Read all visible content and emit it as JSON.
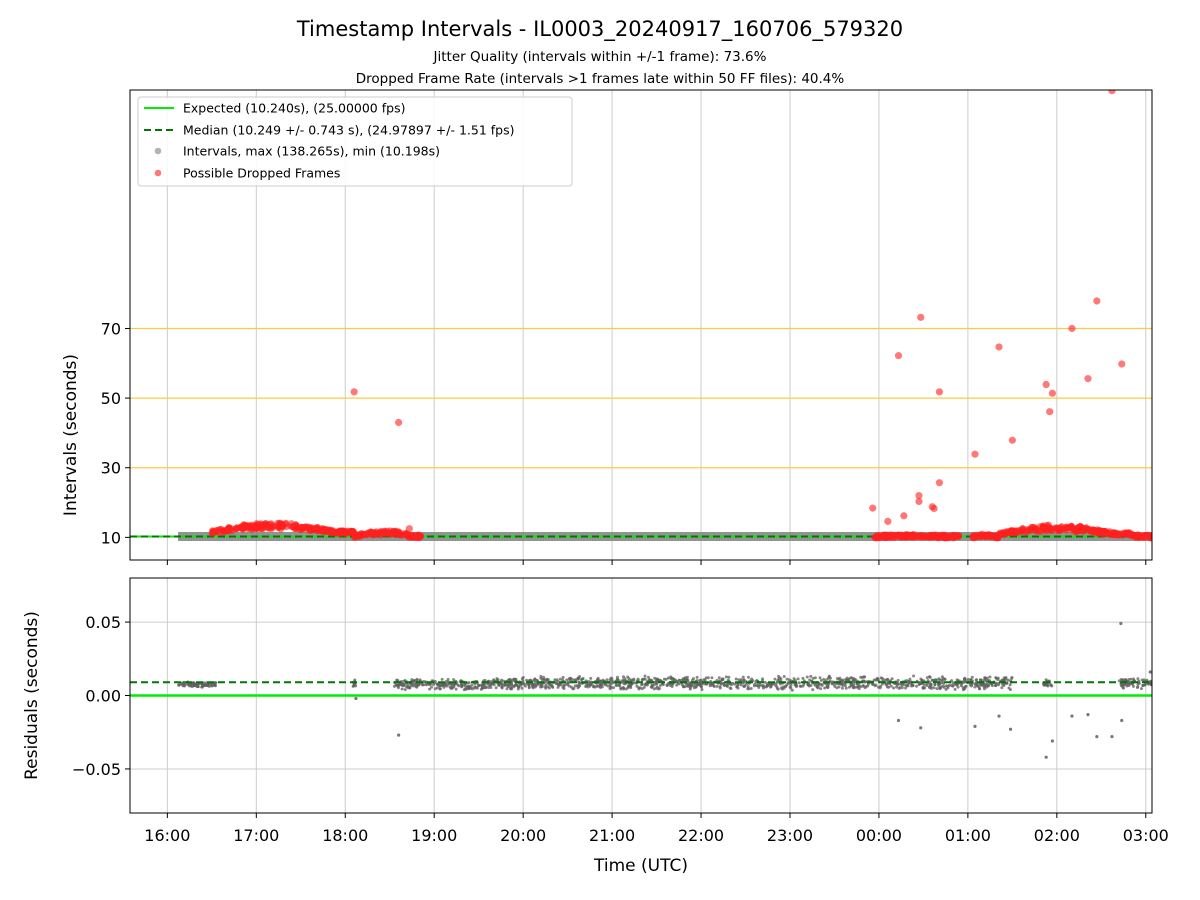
{
  "figure": {
    "title": "Timestamp Intervals - IL0003_20240917_160706_579320",
    "subtitle_1": "Jitter Quality (intervals within +/-1 frame): 73.6%",
    "subtitle_2": "Dropped Frame Rate (intervals >1 frames late within 50 FF files): 40.4%"
  },
  "colors": {
    "expected": "#00ee00",
    "median": "#007700",
    "intervals": "#808080",
    "dropped": "#ff2020",
    "reference": "#ffc845",
    "grid": "#cccccc"
  },
  "chart_data": [
    {
      "type": "scatter",
      "panel": "top",
      "xlabel": "",
      "ylabel": "Intervals (seconds)",
      "ylim": [
        3.5,
        138.5
      ],
      "yticks": [
        10,
        30,
        50,
        70
      ],
      "ytick_labels": [
        "10",
        "30",
        "50",
        "70"
      ],
      "xlim_hours": [
        15.58,
        27.07
      ],
      "xticks_hours": [
        16,
        17,
        18,
        19,
        20,
        21,
        22,
        23,
        24,
        25,
        26,
        27
      ],
      "grid": "x-only",
      "reference_lines": [
        30,
        50,
        70
      ],
      "legend_position": "top-left",
      "legend": [
        "Expected (10.240s), (25.00000 fps)",
        "Median (10.249 +/- 0.743 s), (24.97897 +/- 1.51 fps)",
        "Intervals, max (138.265s), min (10.198s)",
        "Possible Dropped Frames"
      ],
      "expected_value": 10.24,
      "median_value": 10.249,
      "series": [
        {
          "name": "Intervals, max (138.265s), min (10.198s)",
          "kind": "band",
          "segments": [
            {
              "x0": 16.12,
              "x1": 18.85,
              "y": 10.25
            },
            {
              "x0": 18.85,
              "x1": 23.95,
              "y": 10.25
            },
            {
              "x0": 23.95,
              "x1": 27.07,
              "y": 10.25
            }
          ]
        },
        {
          "name": "Possible Dropped Frames",
          "kind": "hump_clusters",
          "clusters": [
            {
              "x0": 16.5,
              "x1": 18.1,
              "peak": 14.0,
              "base": 11.5
            },
            {
              "x0": 18.1,
              "x1": 18.87,
              "peak": 11.8,
              "base": 10.3
            },
            {
              "x0": 23.95,
              "x1": 24.9,
              "peak": 10.5,
              "base": 10.2
            },
            {
              "x0": 25.05,
              "x1": 25.35,
              "peak": 10.6,
              "base": 10.2
            },
            {
              "x0": 25.35,
              "x1": 26.85,
              "peak": 13.3,
              "base": 11.0
            },
            {
              "x0": 26.85,
              "x1": 27.07,
              "peak": 10.5,
              "base": 10.2
            }
          ],
          "outliers": [
            {
              "x": 18.1,
              "y": 51.8
            },
            {
              "x": 18.6,
              "y": 43.0
            },
            {
              "x": 18.72,
              "y": 12.5
            },
            {
              "x": 23.93,
              "y": 18.4
            },
            {
              "x": 24.1,
              "y": 14.6
            },
            {
              "x": 24.22,
              "y": 62.2
            },
            {
              "x": 24.28,
              "y": 16.2
            },
            {
              "x": 24.45,
              "y": 22.0
            },
            {
              "x": 24.45,
              "y": 20.3
            },
            {
              "x": 24.47,
              "y": 73.2
            },
            {
              "x": 24.6,
              "y": 18.8
            },
            {
              "x": 24.62,
              "y": 18.3
            },
            {
              "x": 24.68,
              "y": 25.7
            },
            {
              "x": 24.68,
              "y": 51.8
            },
            {
              "x": 25.08,
              "y": 33.9
            },
            {
              "x": 25.35,
              "y": 64.7
            },
            {
              "x": 25.5,
              "y": 37.9
            },
            {
              "x": 25.88,
              "y": 53.9
            },
            {
              "x": 25.92,
              "y": 46.1
            },
            {
              "x": 25.95,
              "y": 51.4
            },
            {
              "x": 26.17,
              "y": 70.0
            },
            {
              "x": 26.35,
              "y": 55.6
            },
            {
              "x": 26.45,
              "y": 77.9
            },
            {
              "x": 26.62,
              "y": 138.3
            },
            {
              "x": 26.73,
              "y": 59.8
            }
          ]
        },
        {
          "name": "Expected (10.240s), (25.00000 fps)",
          "kind": "hline",
          "y": 10.24
        },
        {
          "name": "Median (10.249 +/- 0.743 s), (24.97897 +/- 1.51 fps)",
          "kind": "hline",
          "y": 10.249
        }
      ]
    },
    {
      "type": "scatter",
      "panel": "bottom",
      "xlabel": "Time (UTC)",
      "ylabel": "Residuals (seconds)",
      "ylim": [
        -0.08,
        0.08
      ],
      "yticks": [
        -0.05,
        0.0,
        0.05
      ],
      "ytick_labels": [
        "−0.05",
        "0.00",
        "0.05"
      ],
      "xlim_hours": [
        15.58,
        27.07
      ],
      "xticks_hours": [
        16,
        17,
        18,
        19,
        20,
        21,
        22,
        23,
        24,
        25,
        26,
        27
      ],
      "xtick_labels": [
        "16:00",
        "17:00",
        "18:00",
        "19:00",
        "20:00",
        "21:00",
        "22:00",
        "23:00",
        "00:00",
        "01:00",
        "02:00",
        "03:00"
      ],
      "grid": "both",
      "expected_value": 0.0,
      "median_value": 0.009,
      "series": [
        {
          "name": "Residuals",
          "kind": "noise_clusters",
          "clusters": [
            {
              "x0": 16.12,
              "x1": 16.55,
              "center": 0.0075,
              "spread": 0.002
            },
            {
              "x0": 18.08,
              "x1": 18.12,
              "center": 0.008,
              "spread": 0.003
            },
            {
              "x0": 18.55,
              "x1": 19.7,
              "center": 0.0075,
              "spread": 0.004
            },
            {
              "x0": 19.7,
              "x1": 25.5,
              "center": 0.0085,
              "spread": 0.005
            },
            {
              "x0": 25.85,
              "x1": 25.95,
              "center": 0.008,
              "spread": 0.003
            },
            {
              "x0": 26.7,
              "x1": 27.07,
              "center": 0.0085,
              "spread": 0.004
            }
          ],
          "outliers": [
            {
              "x": 18.12,
              "y": -0.002
            },
            {
              "x": 18.6,
              "y": -0.027
            },
            {
              "x": 24.22,
              "y": -0.017
            },
            {
              "x": 24.47,
              "y": -0.022
            },
            {
              "x": 25.08,
              "y": -0.021
            },
            {
              "x": 25.35,
              "y": -0.014
            },
            {
              "x": 25.48,
              "y": -0.023
            },
            {
              "x": 25.88,
              "y": -0.042
            },
            {
              "x": 25.95,
              "y": -0.031
            },
            {
              "x": 26.17,
              "y": -0.014
            },
            {
              "x": 26.35,
              "y": -0.013
            },
            {
              "x": 26.45,
              "y": -0.028
            },
            {
              "x": 26.62,
              "y": -0.028
            },
            {
              "x": 26.73,
              "y": -0.017
            },
            {
              "x": 26.72,
              "y": 0.049
            },
            {
              "x": 27.05,
              "y": 0.016
            }
          ]
        },
        {
          "name": "Expected",
          "kind": "hline",
          "y": 0.0
        },
        {
          "name": "Median",
          "kind": "hline",
          "y": 0.009
        }
      ]
    }
  ]
}
